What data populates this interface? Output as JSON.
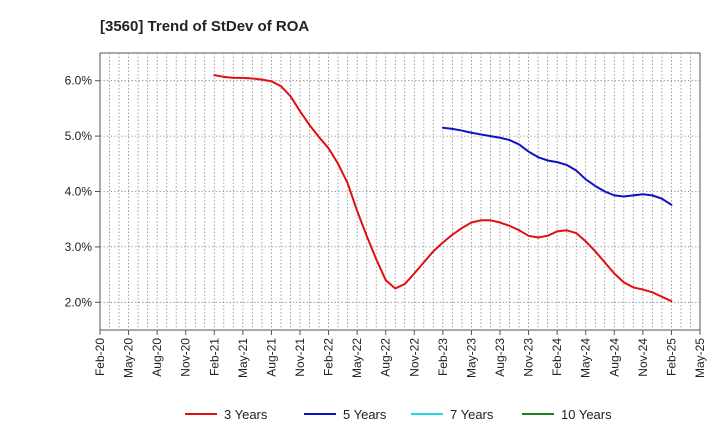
{
  "chart_data": {
    "type": "line",
    "title": "[3560]  Trend of StDev of ROA",
    "xlabel": "",
    "ylabel": "",
    "ylim": [
      1.5,
      6.5
    ],
    "y_ticks": [
      "2.0%",
      "3.0%",
      "4.0%",
      "5.0%",
      "6.0%"
    ],
    "y_tick_values": [
      2.0,
      3.0,
      4.0,
      5.0,
      6.0
    ],
    "x_ticks": [
      "Feb-20",
      "May-20",
      "Aug-20",
      "Nov-20",
      "Feb-21",
      "May-21",
      "Aug-21",
      "Nov-21",
      "Feb-22",
      "May-22",
      "Aug-22",
      "Nov-22",
      "Feb-23",
      "May-23",
      "Aug-23",
      "Nov-23",
      "Feb-24",
      "May-24",
      "Aug-24",
      "Nov-24",
      "Feb-25",
      "May-25"
    ],
    "grid": true,
    "legend_position": "bottom",
    "series": [
      {
        "name": "3 Years",
        "color": "#e01010",
        "points": [
          [
            "Feb-21",
            6.1
          ],
          [
            "Mar-21",
            6.07
          ],
          [
            "Apr-21",
            6.05
          ],
          [
            "May-21",
            6.05
          ],
          [
            "Jun-21",
            6.04
          ],
          [
            "Jul-21",
            6.02
          ],
          [
            "Aug-21",
            5.99
          ],
          [
            "Sep-21",
            5.9
          ],
          [
            "Oct-21",
            5.72
          ],
          [
            "Nov-21",
            5.45
          ],
          [
            "Dec-21",
            5.2
          ],
          [
            "Jan-22",
            4.98
          ],
          [
            "Feb-22",
            4.78
          ],
          [
            "Mar-22",
            4.5
          ],
          [
            "Apr-22",
            4.15
          ],
          [
            "May-22",
            3.65
          ],
          [
            "Jun-22",
            3.2
          ],
          [
            "Jul-22",
            2.78
          ],
          [
            "Aug-22",
            2.4
          ],
          [
            "Sep-22",
            2.25
          ],
          [
            "Oct-22",
            2.33
          ],
          [
            "Nov-22",
            2.52
          ],
          [
            "Dec-22",
            2.72
          ],
          [
            "Jan-23",
            2.92
          ],
          [
            "Feb-23",
            3.08
          ],
          [
            "Mar-23",
            3.22
          ],
          [
            "Apr-23",
            3.34
          ],
          [
            "May-23",
            3.44
          ],
          [
            "Jun-23",
            3.48
          ],
          [
            "Jul-23",
            3.48
          ],
          [
            "Aug-23",
            3.44
          ],
          [
            "Sep-23",
            3.38
          ],
          [
            "Oct-23",
            3.3
          ],
          [
            "Nov-23",
            3.2
          ],
          [
            "Dec-23",
            3.17
          ],
          [
            "Jan-24",
            3.2
          ],
          [
            "Feb-24",
            3.28
          ],
          [
            "Mar-24",
            3.3
          ],
          [
            "Apr-24",
            3.25
          ],
          [
            "May-24",
            3.1
          ],
          [
            "Jun-24",
            2.92
          ],
          [
            "Jul-24",
            2.72
          ],
          [
            "Aug-24",
            2.52
          ],
          [
            "Sep-24",
            2.36
          ],
          [
            "Oct-24",
            2.27
          ],
          [
            "Nov-24",
            2.23
          ],
          [
            "Dec-24",
            2.18
          ],
          [
            "Jan-25",
            2.1
          ],
          [
            "Feb-25",
            2.02
          ]
        ]
      },
      {
        "name": "5 Years",
        "color": "#1010c8",
        "points": [
          [
            "Feb-23",
            5.15
          ],
          [
            "Mar-23",
            5.13
          ],
          [
            "Apr-23",
            5.1
          ],
          [
            "May-23",
            5.06
          ],
          [
            "Jun-23",
            5.03
          ],
          [
            "Jul-23",
            5.0
          ],
          [
            "Aug-23",
            4.97
          ],
          [
            "Sep-23",
            4.93
          ],
          [
            "Oct-23",
            4.85
          ],
          [
            "Nov-23",
            4.72
          ],
          [
            "Dec-23",
            4.62
          ],
          [
            "Jan-24",
            4.56
          ],
          [
            "Feb-24",
            4.53
          ],
          [
            "Mar-24",
            4.48
          ],
          [
            "Apr-24",
            4.38
          ],
          [
            "May-24",
            4.22
          ],
          [
            "Jun-24",
            4.1
          ],
          [
            "Jul-24",
            4.0
          ],
          [
            "Aug-24",
            3.93
          ],
          [
            "Sep-24",
            3.91
          ],
          [
            "Oct-24",
            3.93
          ],
          [
            "Nov-24",
            3.95
          ],
          [
            "Dec-24",
            3.93
          ],
          [
            "Jan-25",
            3.87
          ],
          [
            "Feb-25",
            3.76
          ]
        ]
      },
      {
        "name": "7 Years",
        "color": "#20d8e8",
        "points": []
      },
      {
        "name": "10 Years",
        "color": "#208020",
        "points": []
      }
    ]
  }
}
